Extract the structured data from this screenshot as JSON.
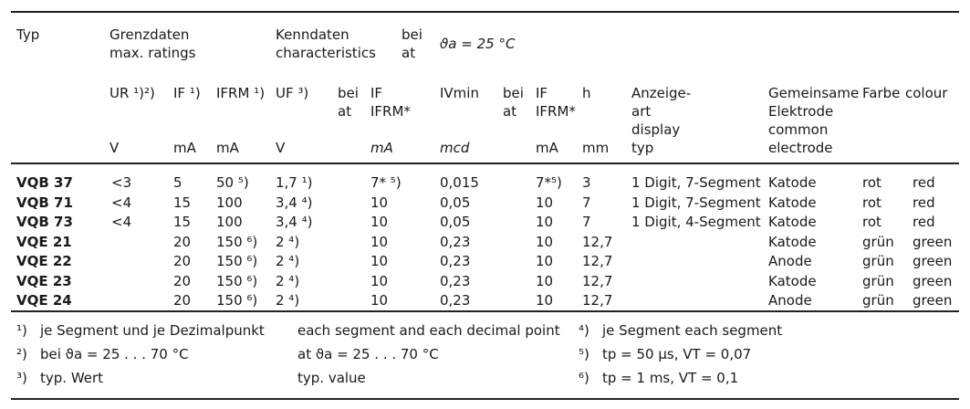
{
  "header": {
    "typ": "Typ",
    "grenz1": "Grenzdaten",
    "grenz2": "max. ratings",
    "kenn1": "Kenndaten",
    "kenn2": "characteristics",
    "bei": "bei",
    "at": "at",
    "cond": "ϑa = 25 °C"
  },
  "cols": {
    "ur": "UR ¹)²)",
    "if": "IF ¹)",
    "ifrm": "IFRM ¹)",
    "uf": "UF ³)",
    "bei1": "bei",
    "at1": "at",
    "if2a": "IF",
    "if2b": "IFRM*",
    "ivmin": "IVmin",
    "bei2": "bei",
    "at2": "at",
    "if3a": "IF",
    "if3b": "IFRM*",
    "h": "h",
    "anz1": "Anzeige-",
    "anz2": "art",
    "anz3": "display",
    "anz4": "typ",
    "gem1": "Gemeinsame",
    "gem2": "Elektrode",
    "gem3": "common",
    "gem4": "electrode",
    "farbe": "Farbe",
    "colour": "colour"
  },
  "units": {
    "ur": "V",
    "if": "mA",
    "ifrm": "mA",
    "uf": "V",
    "if2": "mA",
    "ivmin": "mcd",
    "if3": "mA",
    "h": "mm"
  },
  "rows": [
    {
      "typ": "VQB 37",
      "ur": "<3",
      "if": "5",
      "ifrm": "50 ⁵)",
      "uf": "1,7 ¹)",
      "if2": "7* ⁵)",
      "iv": "0,015",
      "if3": "7*⁵)",
      "h": "3",
      "anz": "1 Digit, 7-Segment",
      "el": "Katode",
      "farbe": "rot",
      "colour": "red"
    },
    {
      "typ": "VQB 71",
      "ur": "<4",
      "if": "15",
      "ifrm": "100",
      "uf": "3,4 ⁴)",
      "if2": "10",
      "iv": "0,05",
      "if3": "10",
      "h": "7",
      "anz": "1 Digit, 7-Segment",
      "el": "Katode",
      "farbe": "rot",
      "colour": "red"
    },
    {
      "typ": "VQB 73",
      "ur": "<4",
      "if": "15",
      "ifrm": "100",
      "uf": "3,4 ⁴)",
      "if2": "10",
      "iv": "0,05",
      "if3": "10",
      "h": "7",
      "anz": "1 Digit, 4-Segment",
      "el": "Katode",
      "farbe": "rot",
      "colour": "red"
    },
    {
      "typ": "VQE 21",
      "ur": "",
      "if": "20",
      "ifrm": "150 ⁶)",
      "uf": "2 ⁴)",
      "if2": "10",
      "iv": "0,23",
      "if3": "10",
      "h": "12,7",
      "anz": "",
      "el": "Katode",
      "farbe": "grün",
      "colour": "green"
    },
    {
      "typ": "VQE 22",
      "ur": "",
      "if": "20",
      "ifrm": "150 ⁶)",
      "uf": "2 ⁴)",
      "if2": "10",
      "iv": "0,23",
      "if3": "10",
      "h": "12,7",
      "anz": "",
      "el": "Anode",
      "farbe": "grün",
      "colour": "green"
    },
    {
      "typ": "VQE 23",
      "ur": "",
      "if": "20",
      "ifrm": "150 ⁶)",
      "uf": "2 ⁴)",
      "if2": "10",
      "iv": "0,23",
      "if3": "10",
      "h": "12,7",
      "anz": "",
      "el": "Katode",
      "farbe": "grün",
      "colour": "green"
    },
    {
      "typ": "VQE 24",
      "ur": "",
      "if": "20",
      "ifrm": "150 ⁶)",
      "uf": "2 ⁴)",
      "if2": "10",
      "iv": "0,23",
      "if3": "10",
      "h": "12,7",
      "anz": "",
      "el": "Anode",
      "farbe": "grün",
      "colour": "green"
    }
  ],
  "notes": {
    "n1_mark": "¹)",
    "n1_de": "je Segment und je Dezimalpunkt",
    "n1_en": "each segment and each decimal point",
    "n2_mark": "²)",
    "n2_de": "bei ϑa = 25 . . . 70 °C",
    "n2_en": "at ϑa = 25 . . . 70 °C",
    "n3_mark": "³)",
    "n3_de": "typ. Wert",
    "n3_en": "typ. value",
    "n4_mark": "⁴)",
    "n4": "je Segment each segment",
    "n5_mark": "⁵)",
    "n5": "tp = 50 µs, VT = 0,07",
    "n6_mark": "⁶)",
    "n6": "tp = 1 ms, VT = 0,1"
  }
}
